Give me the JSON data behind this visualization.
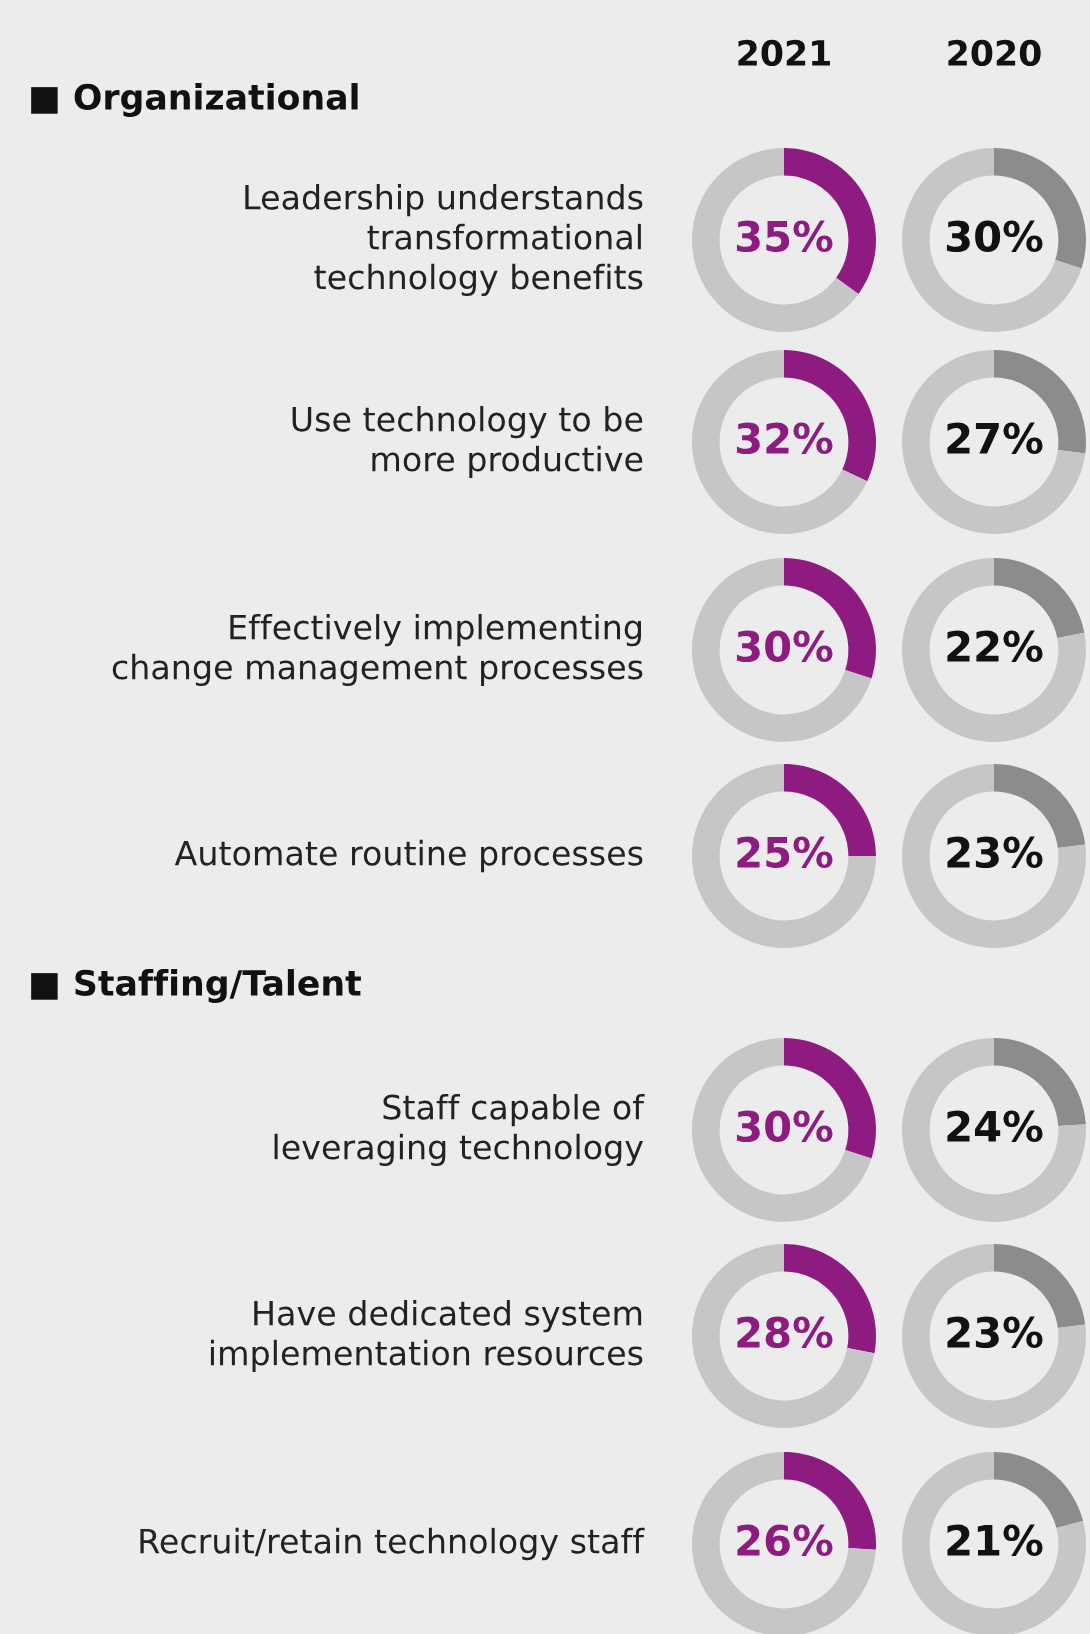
{
  "chart_data": [
    {
      "type": "other",
      "annotations": [
        "2021",
        "2020",
        "■ Organizational",
        "■ Staffing/Talent"
      ]
    },
    {
      "type": "donut",
      "title": "Leadership understands\ntransformational\ntechnology benefits",
      "categories": [
        null,
        null
      ],
      "values": [
        35,
        65
      ],
      "colors": [
        "#8e1b7f",
        "#c6c6c9"
      ],
      "value_labels": [
        "35%",
        null
      ]
    },
    {
      "type": "donut",
      "categories": [
        null,
        null
      ],
      "values": [
        30,
        70
      ],
      "colors": [
        "#8b8c8e",
        "#c6c6c9"
      ],
      "value_labels": [
        "30%",
        null
      ]
    },
    {
      "type": "donut",
      "title": "Use technology to be\nmore productive",
      "categories": [
        null,
        null
      ],
      "values": [
        32,
        68
      ],
      "colors": [
        "#8e1b7f",
        "#c6c6c9"
      ],
      "value_labels": [
        "32%",
        null
      ]
    },
    {
      "type": "donut",
      "categories": [
        null,
        null
      ],
      "values": [
        27,
        73
      ],
      "colors": [
        "#8b8c8e",
        "#c6c6c9"
      ],
      "value_labels": [
        "27%",
        null
      ]
    },
    {
      "type": "donut",
      "title": "Effectively implementing\nchange management processes",
      "categories": [
        null,
        null
      ],
      "values": [
        30,
        70
      ],
      "colors": [
        "#8e1b7f",
        "#c6c6c9"
      ],
      "value_labels": [
        "30%",
        null
      ]
    },
    {
      "type": "donut",
      "categories": [
        null,
        null
      ],
      "values": [
        22,
        78
      ],
      "colors": [
        "#8b8c8e",
        "#c6c6c9"
      ],
      "value_labels": [
        "22%",
        null
      ]
    },
    {
      "type": "donut",
      "title": "Automate routine processes",
      "categories": [
        null,
        null
      ],
      "values": [
        25,
        75
      ],
      "colors": [
        "#8e1b7f",
        "#c6c6c9"
      ],
      "value_labels": [
        "25%",
        null
      ]
    },
    {
      "type": "donut",
      "categories": [
        null,
        null
      ],
      "values": [
        23,
        77
      ],
      "colors": [
        "#8b8c8e",
        "#c6c6c9"
      ],
      "value_labels": [
        "23%",
        null
      ]
    },
    {
      "type": "donut",
      "title": "Staff capable of\nleveraging technology",
      "categories": [
        null,
        null
      ],
      "values": [
        30,
        70
      ],
      "colors": [
        "#8e1b7f",
        "#c6c6c9"
      ],
      "value_labels": [
        "30%",
        null
      ]
    },
    {
      "type": "donut",
      "categories": [
        null,
        null
      ],
      "values": [
        24,
        76
      ],
      "colors": [
        "#8b8c8e",
        "#c6c6c9"
      ],
      "value_labels": [
        "24%",
        null
      ]
    },
    {
      "type": "donut",
      "title": "Have dedicated system\nimplementation resources",
      "categories": [
        null,
        null
      ],
      "values": [
        28,
        72
      ],
      "colors": [
        "#8e1b7f",
        "#c6c6c9"
      ],
      "value_labels": [
        "28%",
        null
      ]
    },
    {
      "type": "donut",
      "categories": [
        null,
        null
      ],
      "values": [
        23,
        77
      ],
      "colors": [
        "#8b8c8e",
        "#c6c6c9"
      ],
      "value_labels": [
        "23%",
        null
      ]
    },
    {
      "type": "donut",
      "title": "Recruit/retain technology staff",
      "categories": [
        null,
        null
      ],
      "values": [
        26,
        74
      ],
      "colors": [
        "#8e1b7f",
        "#c6c6c9"
      ],
      "value_labels": [
        "26%",
        null
      ]
    },
    {
      "type": "donut",
      "categories": [
        null,
        null
      ],
      "values": [
        21,
        79
      ],
      "colors": [
        "#8b8c8e",
        "#c6c6c9"
      ],
      "value_labels": [
        "21%",
        null
      ]
    }
  ]
}
